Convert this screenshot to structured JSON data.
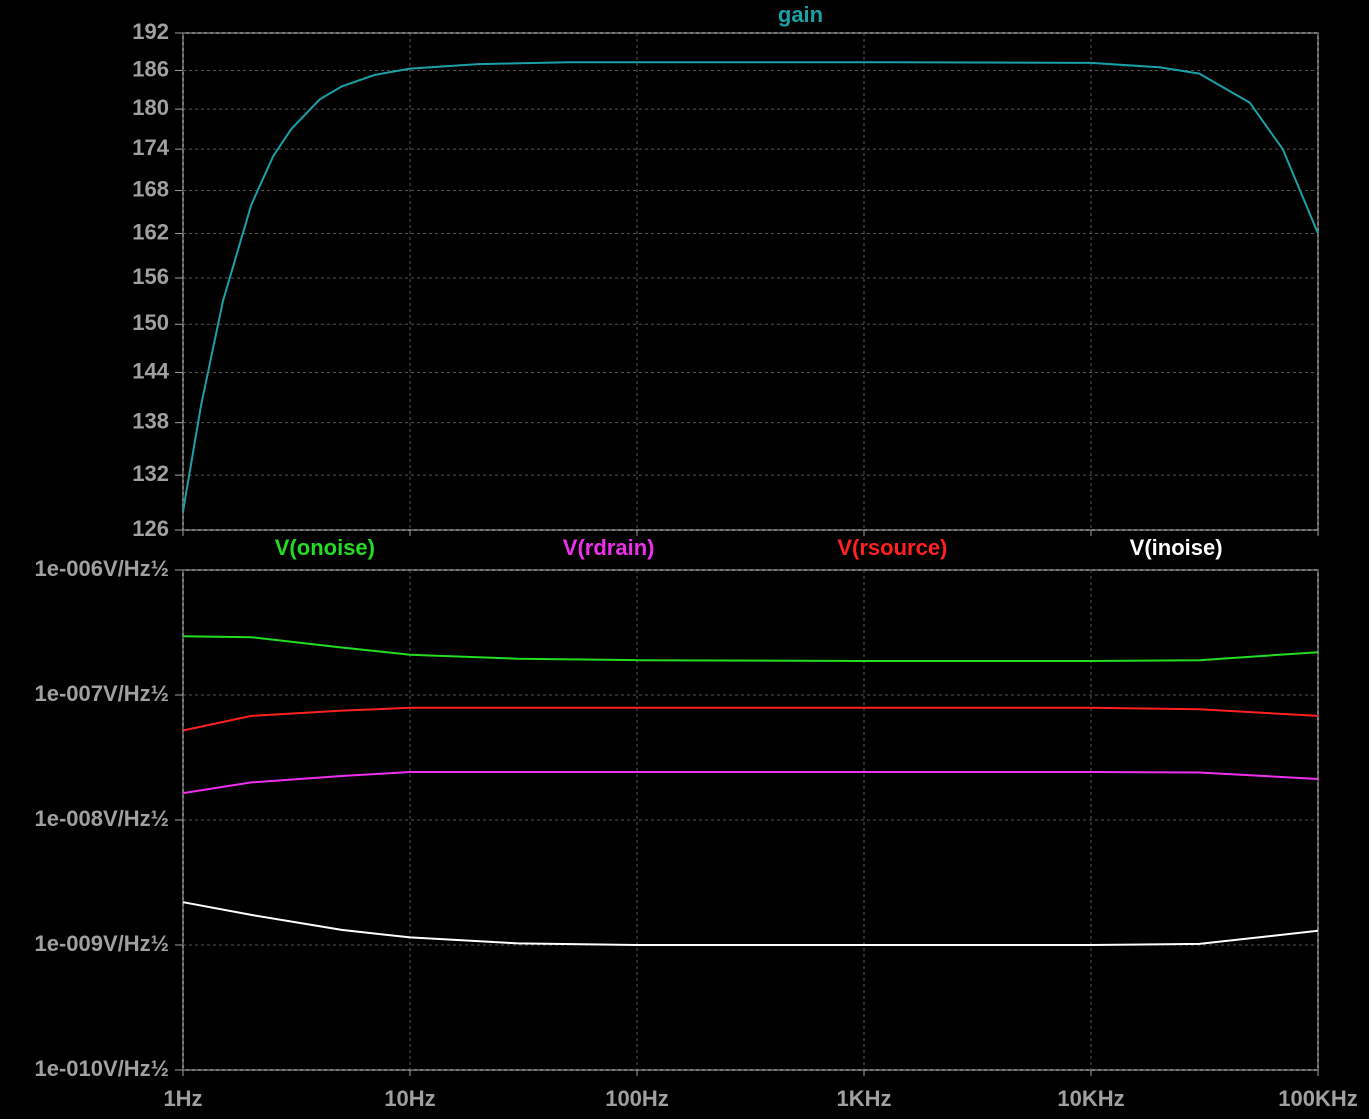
{
  "chart_data": [
    {
      "type": "line",
      "xscale": "log",
      "yscale": "log",
      "grid": true,
      "x": [
        1,
        1.2,
        1.5,
        2,
        2.5,
        3,
        4,
        5,
        7,
        10,
        20,
        50,
        100,
        1000,
        10000,
        20000,
        30000,
        50000,
        70000,
        100000
      ],
      "series": [
        {
          "name": "gain",
          "color": "#1ca0a8",
          "values": [
            128,
            140,
            153,
            166,
            173,
            177,
            181.5,
            183.5,
            185.3,
            186.3,
            187,
            187.3,
            187.3,
            187.3,
            187.2,
            186.5,
            185.5,
            181,
            174,
            162
          ]
        }
      ],
      "xlim": [
        1,
        100000
      ],
      "xticks": [
        1,
        10,
        100,
        1000,
        10000,
        100000
      ],
      "ylim": [
        126,
        192
      ],
      "yticks": [
        126,
        132,
        138,
        144,
        150,
        156,
        162,
        168,
        174,
        180,
        186,
        192
      ]
    },
    {
      "type": "line",
      "xscale": "log",
      "yscale": "log",
      "grid": true,
      "x": [
        1,
        2,
        5,
        10,
        30,
        100,
        1000,
        10000,
        30000,
        100000
      ],
      "series": [
        {
          "name": "V(onoise)",
          "color": "#22dd22",
          "values": [
            2.95e-07,
            2.9e-07,
            2.4e-07,
            2.1e-07,
            1.95e-07,
            1.9e-07,
            1.87e-07,
            1.87e-07,
            1.9e-07,
            2.2e-07
          ]
        },
        {
          "name": "V(rdrain)",
          "color": "#ee30ee",
          "values": [
            1.64e-08,
            2e-08,
            2.25e-08,
            2.42e-08,
            2.42e-08,
            2.42e-08,
            2.42e-08,
            2.42e-08,
            2.4e-08,
            2.13e-08
          ]
        },
        {
          "name": "V(rsource)",
          "color": "#ff2020",
          "values": [
            5.2e-08,
            6.8e-08,
            7.5e-08,
            7.9e-08,
            7.9e-08,
            7.9e-08,
            7.9e-08,
            7.9e-08,
            7.7e-08,
            6.8e-08
          ]
        },
        {
          "name": "V(inoise)",
          "color": "#ffffff",
          "values": [
            2.2e-09,
            1.74e-09,
            1.32e-09,
            1.15e-09,
            1.03e-09,
            1e-09,
            1e-09,
            1e-09,
            1.02e-09,
            1.3e-09
          ]
        }
      ],
      "xlim": [
        1,
        100000
      ],
      "xticks": [
        {
          "value": 1,
          "label": "1Hz"
        },
        {
          "value": 10,
          "label": "10Hz"
        },
        {
          "value": 100,
          "label": "100Hz"
        },
        {
          "value": 1000,
          "label": "1KHz"
        },
        {
          "value": 10000,
          "label": "10KHz"
        },
        {
          "value": 100000,
          "label": "100KHz"
        }
      ],
      "ylim": [
        1e-10,
        1e-06
      ],
      "yticks": [
        {
          "value": 1e-10,
          "label": "1e-010V/Hz½"
        },
        {
          "value": 1e-09,
          "label": "1e-009V/Hz½"
        },
        {
          "value": 1e-08,
          "label": "1e-008V/Hz½"
        },
        {
          "value": 1e-07,
          "label": "1e-007V/Hz½"
        },
        {
          "value": 1e-06,
          "label": "1e-006V/Hz½"
        }
      ]
    }
  ]
}
